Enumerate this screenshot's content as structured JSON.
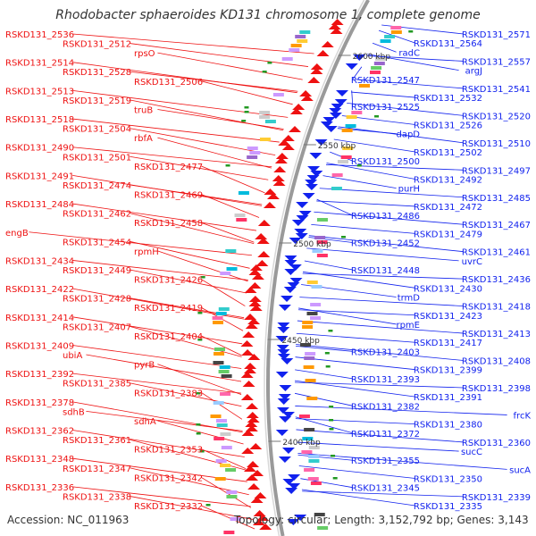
{
  "title": "Rhodobacter sphaeroides KD131 chromosome 1, complete genome",
  "accession": "Accession: NC_011963",
  "topology": "Topology: circular; Length: 3,152,792 bp; Genes: 3,143",
  "colors": {
    "forward_strand": "#ee1111",
    "reverse_strand": "#1122ee",
    "backbone": "#9a9a9a",
    "gc_tick": "#229922",
    "text": "#333333"
  },
  "scale_ticks": [
    "2600 kbp",
    "2550 kbp",
    "2500 kbp",
    "2450 kbp",
    "2400 kbp"
  ],
  "forward_labels": [
    "RSKD131_2536",
    "RSKD131_2512",
    "rpsO",
    "RSKD131_2514",
    "RSKD131_2528",
    "RSKD131_2506",
    "RSKD131_2513",
    "RSKD131_2519",
    "truB",
    "RSKD131_2518",
    "RSKD131_2504",
    "rbfA",
    "RSKD131_2490",
    "RSKD131_2501",
    "RSKD131_2477",
    "RSKD131_2491",
    "RSKD131_2474",
    "RSKD131_2469",
    "RSKD131_2484",
    "RSKD131_2462",
    "RSKD131_2458",
    "engB",
    "RSKD131_2454",
    "rpmH",
    "RSKD131_2434",
    "RSKD131_2449",
    "RSKD131_2426",
    "RSKD131_2422",
    "RSKD131_2428",
    "RSKD131_2419",
    "RSKD131_2414",
    "RSKD131_2407",
    "RSKD131_2404",
    "RSKD131_2409",
    "ubiA",
    "pyrB",
    "RSKD131_2392",
    "RSKD131_2385",
    "RSKD131_2383",
    "RSKD131_2378",
    "sdhB",
    "sdhA",
    "RSKD131_2362",
    "RSKD131_2361",
    "RSKD131_2353",
    "RSKD131_2348",
    "RSKD131_2347",
    "RSKD131_2342",
    "RSKD131_2336",
    "RSKD131_2338",
    "RSKD131_2332"
  ],
  "reverse_labels": [
    "RSKD131_2571",
    "RSKD131_2564",
    "radC",
    "RSKD131_2557",
    "argJ",
    "RSKD131_2547",
    "RSKD131_2541",
    "RSKD131_2532",
    "RSKD131_2525",
    "RSKD131_2520",
    "RSKD131_2526",
    "dapD",
    "RSKD131_2510",
    "RSKD131_2502",
    "RSKD131_2500",
    "RSKD131_2497",
    "RSKD131_2492",
    "purH",
    "RSKD131_2485",
    "RSKD131_2472",
    "RSKD131_2486",
    "RSKD131_2467",
    "RSKD131_2479",
    "RSKD131_2452",
    "RSKD131_2461",
    "uvrC",
    "RSKD131_2448",
    "RSKD131_2436",
    "RSKD131_2430",
    "trmD",
    "RSKD131_2418",
    "RSKD131_2423",
    "rpmE",
    "RSKD131_2413",
    "RSKD131_2417",
    "RSKD131_2403",
    "RSKD131_2408",
    "RSKD131_2399",
    "RSKD131_2393",
    "RSKD131_2398",
    "RSKD131_2391",
    "RSKD131_2382",
    "frcK",
    "RSKD131_2380",
    "RSKD131_2372",
    "RSKD131_2360",
    "sucC",
    "RSKD131_2355",
    "sucA",
    "RSKD131_2350",
    "RSKD131_2345",
    "RSKD131_2339",
    "RSKD131_2335"
  ]
}
